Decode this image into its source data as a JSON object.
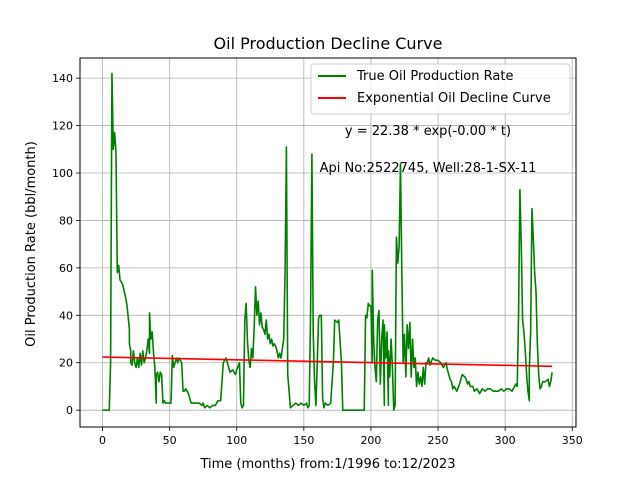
{
  "chart_data": {
    "type": "line",
    "title": "Oil Production Decline Curve",
    "xlabel": "Time (months) from:1/1996 to:12/2023",
    "ylabel": "Oil Production Rate (bbl/month)",
    "xlim": [
      -16.8,
      352.8
    ],
    "ylim": [
      -7.1,
      148.5
    ],
    "xticks": [
      0,
      50,
      100,
      150,
      200,
      250,
      300,
      350
    ],
    "yticks": [
      0,
      20,
      40,
      60,
      80,
      100,
      120,
      140
    ],
    "grid": true,
    "legend_placement": "top-right",
    "annotations": [
      "y = 22.38 * exp(-0.00 * t)",
      "Api No:2522745, Well:28-1-SX-11"
    ],
    "series": [
      {
        "name": "True Oil Production Rate",
        "color": "#008000",
        "points": [
          [
            0,
            0
          ],
          [
            5,
            0
          ],
          [
            6,
            20
          ],
          [
            7,
            142
          ],
          [
            8,
            110
          ],
          [
            9,
            117
          ],
          [
            10,
            109
          ],
          [
            11,
            58
          ],
          [
            12,
            61
          ],
          [
            13,
            55
          ],
          [
            15,
            53
          ],
          [
            17,
            48
          ],
          [
            18,
            45
          ],
          [
            19,
            40
          ],
          [
            20,
            34
          ],
          [
            20,
            28
          ],
          [
            21,
            25
          ],
          [
            21,
            20
          ],
          [
            22,
            19
          ],
          [
            23,
            25
          ],
          [
            24,
            20
          ],
          [
            25,
            18
          ],
          [
            26,
            22
          ],
          [
            27,
            18
          ],
          [
            28,
            24
          ],
          [
            29,
            19
          ],
          [
            30,
            25
          ],
          [
            31,
            20
          ],
          [
            32,
            22
          ],
          [
            33,
            25
          ],
          [
            34,
            30
          ],
          [
            35,
            24
          ],
          [
            35,
            41
          ],
          [
            36,
            30
          ],
          [
            37,
            33
          ],
          [
            38,
            24
          ],
          [
            39,
            18
          ],
          [
            40,
            3
          ],
          [
            40,
            15
          ],
          [
            41,
            16
          ],
          [
            42,
            12
          ],
          [
            43,
            16
          ],
          [
            44,
            15
          ],
          [
            45,
            3
          ],
          [
            46,
            4
          ],
          [
            47,
            3
          ],
          [
            48,
            3
          ],
          [
            49,
            3
          ],
          [
            50,
            3
          ],
          [
            51,
            3
          ],
          [
            52,
            23
          ],
          [
            53,
            18
          ],
          [
            54,
            20
          ],
          [
            55,
            22
          ],
          [
            56,
            20
          ],
          [
            57,
            22
          ],
          [
            58,
            21
          ],
          [
            59,
            20
          ],
          [
            60,
            8
          ],
          [
            61,
            8
          ],
          [
            62,
            9
          ],
          [
            63,
            8
          ],
          [
            64,
            7
          ],
          [
            65,
            5
          ],
          [
            66,
            3
          ],
          [
            68,
            3
          ],
          [
            70,
            3
          ],
          [
            72,
            3
          ],
          [
            74,
            2
          ],
          [
            75,
            3
          ],
          [
            76,
            1
          ],
          [
            78,
            2
          ],
          [
            80,
            1
          ],
          [
            82,
            2
          ],
          [
            84,
            2
          ],
          [
            86,
            4
          ],
          [
            88,
            4
          ],
          [
            90,
            20
          ],
          [
            91,
            21
          ],
          [
            92,
            22
          ],
          [
            93,
            20
          ],
          [
            94,
            18
          ],
          [
            95,
            16
          ],
          [
            97,
            17
          ],
          [
            99,
            15
          ],
          [
            100,
            17
          ],
          [
            102,
            20
          ],
          [
            103,
            3
          ],
          [
            104,
            1
          ],
          [
            105,
            2
          ],
          [
            106,
            38
          ],
          [
            107,
            45
          ],
          [
            108,
            29
          ],
          [
            109,
            21
          ],
          [
            110,
            18
          ],
          [
            111,
            26
          ],
          [
            112,
            22
          ],
          [
            113,
            35
          ],
          [
            114,
            52
          ],
          [
            115,
            40
          ],
          [
            116,
            46
          ],
          [
            117,
            36
          ],
          [
            118,
            41
          ],
          [
            119,
            35
          ],
          [
            120,
            34
          ],
          [
            121,
            32
          ],
          [
            122,
            38
          ],
          [
            123,
            30
          ],
          [
            124,
            32
          ],
          [
            125,
            28
          ],
          [
            126,
            30
          ],
          [
            127,
            27
          ],
          [
            128,
            28
          ],
          [
            129,
            27
          ],
          [
            130,
            25
          ],
          [
            131,
            22
          ],
          [
            132,
            24
          ],
          [
            133,
            22
          ],
          [
            134,
            26
          ],
          [
            135,
            30
          ],
          [
            136,
            58
          ],
          [
            137,
            111
          ],
          [
            138,
            15
          ],
          [
            139,
            8
          ],
          [
            140,
            1
          ],
          [
            142,
            2
          ],
          [
            144,
            3
          ],
          [
            146,
            2
          ],
          [
            148,
            3
          ],
          [
            150,
            2
          ],
          [
            152,
            3
          ],
          [
            153,
            1
          ],
          [
            154,
            2
          ],
          [
            155,
            40
          ],
          [
            156,
            108
          ],
          [
            157,
            32
          ],
          [
            158,
            12
          ],
          [
            159,
            2
          ],
          [
            160,
            20
          ],
          [
            161,
            39
          ],
          [
            162,
            40
          ],
          [
            163,
            40
          ],
          [
            164,
            5
          ],
          [
            165,
            1
          ],
          [
            166,
            3
          ],
          [
            168,
            2
          ],
          [
            170,
            3
          ],
          [
            172,
            20
          ],
          [
            173,
            38
          ],
          [
            175,
            37
          ],
          [
            176,
            38
          ],
          [
            178,
            20
          ],
          [
            179,
            0
          ],
          [
            185,
            0
          ],
          [
            190,
            0
          ],
          [
            195,
            0
          ],
          [
            196,
            40
          ],
          [
            197,
            39
          ],
          [
            198,
            45
          ],
          [
            199,
            44
          ],
          [
            200,
            44
          ],
          [
            201,
            20
          ],
          [
            201,
            59
          ],
          [
            202,
            30
          ],
          [
            203,
            18
          ],
          [
            204,
            12
          ],
          [
            205,
            38
          ],
          [
            206,
            42
          ],
          [
            207,
            11
          ],
          [
            208,
            30
          ],
          [
            209,
            38
          ],
          [
            210,
            2
          ],
          [
            210,
            36
          ],
          [
            211,
            22
          ],
          [
            212,
            33
          ],
          [
            213,
            2
          ],
          [
            213,
            25
          ],
          [
            214,
            14
          ],
          [
            215,
            30
          ],
          [
            216,
            18
          ],
          [
            217,
            0
          ],
          [
            218,
            2
          ],
          [
            219,
            73
          ],
          [
            220,
            62
          ],
          [
            221,
            69
          ],
          [
            222,
            104
          ],
          [
            223,
            59
          ],
          [
            224,
            20
          ],
          [
            225,
            32
          ],
          [
            226,
            14
          ],
          [
            227,
            36
          ],
          [
            228,
            26
          ],
          [
            229,
            37
          ],
          [
            230,
            14
          ],
          [
            231,
            30
          ],
          [
            232,
            18
          ],
          [
            233,
            22
          ],
          [
            234,
            10
          ],
          [
            235,
            16
          ],
          [
            236,
            11
          ],
          [
            237,
            14
          ],
          [
            238,
            10
          ],
          [
            239,
            18
          ],
          [
            240,
            11
          ],
          [
            241,
            20
          ],
          [
            242,
            20
          ],
          [
            243,
            22
          ],
          [
            244,
            19
          ],
          [
            246,
            22
          ],
          [
            248,
            21
          ],
          [
            250,
            21
          ],
          [
            252,
            20
          ],
          [
            254,
            18
          ],
          [
            256,
            20
          ],
          [
            257,
            17
          ],
          [
            258,
            15
          ],
          [
            259,
            13
          ],
          [
            260,
            12
          ],
          [
            261,
            9
          ],
          [
            262,
            10
          ],
          [
            264,
            8
          ],
          [
            266,
            11
          ],
          [
            268,
            15
          ],
          [
            270,
            14
          ],
          [
            271,
            13
          ],
          [
            272,
            11
          ],
          [
            273,
            12
          ],
          [
            274,
            10
          ],
          [
            275,
            10
          ],
          [
            276,
            10
          ],
          [
            277,
            8
          ],
          [
            279,
            9
          ],
          [
            281,
            7
          ],
          [
            283,
            9
          ],
          [
            285,
            8
          ],
          [
            287,
            9
          ],
          [
            289,
            9
          ],
          [
            291,
            8
          ],
          [
            293,
            8
          ],
          [
            295,
            8
          ],
          [
            297,
            9
          ],
          [
            299,
            8
          ],
          [
            301,
            9
          ],
          [
            303,
            9
          ],
          [
            305,
            8
          ],
          [
            307,
            10
          ],
          [
            308,
            11
          ],
          [
            309,
            10
          ],
          [
            310,
            40
          ],
          [
            311,
            93
          ],
          [
            312,
            70
          ],
          [
            313,
            38
          ],
          [
            314,
            33
          ],
          [
            315,
            25
          ],
          [
            316,
            15
          ],
          [
            317,
            8
          ],
          [
            318,
            4
          ],
          [
            318,
            17
          ],
          [
            319,
            33
          ],
          [
            320,
            85
          ],
          [
            321,
            72
          ],
          [
            322,
            58
          ],
          [
            323,
            50
          ],
          [
            324,
            28
          ],
          [
            325,
            15
          ],
          [
            326,
            9
          ],
          [
            327,
            10
          ],
          [
            328,
            12
          ],
          [
            330,
            12
          ],
          [
            332,
            13
          ],
          [
            333,
            10
          ],
          [
            334,
            12
          ],
          [
            335,
            16
          ]
        ]
      },
      {
        "name": "Exponential Oil Decline Curve",
        "color": "#ff0000",
        "points": [
          [
            0,
            22.38
          ],
          [
            335,
            18.5
          ]
        ]
      }
    ]
  }
}
